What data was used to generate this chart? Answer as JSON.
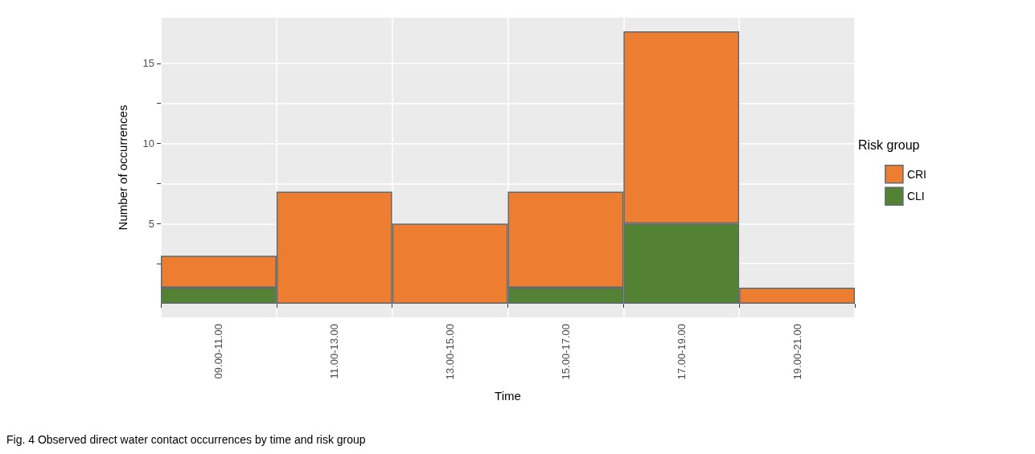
{
  "chart_data": {
    "type": "bar",
    "stacked": true,
    "xlabel": "Time",
    "ylabel": "Number of occurrences",
    "legend_title": "Risk group",
    "legend": "right",
    "categories": [
      "09.00-11.00",
      "11.00-13.00",
      "13.00-15.00",
      "15.00-17.00",
      "17.00-19.00",
      "19.00-21.00"
    ],
    "series": [
      {
        "name": "CLI",
        "color": "#548235",
        "values": [
          1,
          null,
          null,
          1,
          5,
          null
        ]
      },
      {
        "name": "CRI",
        "color": "#ed7d31",
        "values": [
          2,
          7,
          5,
          6,
          12,
          1
        ]
      }
    ],
    "ylim": [
      -0.85,
      17.85
    ],
    "yticks": [
      {
        "value": 2.5,
        "label": null
      },
      5,
      {
        "value": 7.5,
        "label": null
      },
      10,
      {
        "value": 12.5,
        "label": null
      },
      15
    ],
    "grid": true,
    "annotations": [
      "Fig. 4 Observed direct water contact occurrences by time and risk group"
    ]
  }
}
